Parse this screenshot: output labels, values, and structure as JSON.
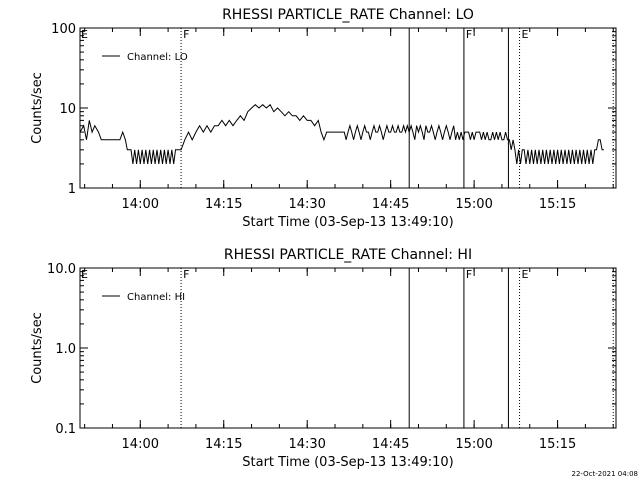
{
  "footer": {
    "date_stamp": "22-Oct-2021 04:08"
  },
  "chart_data": [
    {
      "type": "line",
      "title": "RHESSI PARTICLE_RATE Channel: LO",
      "xlabel": "Start Time (03-Sep-13 13:49:10)",
      "ylabel": "Counts/sec",
      "yscale": "log",
      "ylim": [
        1,
        100
      ],
      "xlim": [
        "13:49:10",
        "15:25:30"
      ],
      "x_ticks": [
        "14:00",
        "14:15",
        "14:30",
        "14:45",
        "15:00",
        "15:15"
      ],
      "y_ticks": [
        "1",
        "10",
        "100"
      ],
      "legend": {
        "location": "top-left",
        "entries": [
          "Channel: LO"
        ]
      },
      "vertical_markers": [
        {
          "time": "14:07:20",
          "style": "dotted",
          "label": "F"
        },
        {
          "time": "14:48:20",
          "style": "solid",
          "label": ""
        },
        {
          "time": "14:58:10",
          "style": "solid",
          "label": "F"
        },
        {
          "time": "15:06:10",
          "style": "solid",
          "label": ""
        },
        {
          "time": "15:08:10",
          "style": "dotted",
          "label": "E"
        },
        {
          "time": "15:25:00",
          "style": "dotted",
          "label": ""
        }
      ],
      "edge_labels": [
        {
          "label": "E",
          "position": "left-edge"
        }
      ],
      "series": [
        {
          "name": "Channel: LO",
          "points": [
            [
              "13:49:10",
              5
            ],
            [
              "13:49:50",
              6
            ],
            [
              "13:50:20",
              4
            ],
            [
              "13:50:50",
              7
            ],
            [
              "13:51:20",
              5
            ],
            [
              "13:51:50",
              6
            ],
            [
              "13:52:30",
              5
            ],
            [
              "13:53:00",
              4
            ],
            [
              "13:53:40",
              4
            ],
            [
              "13:54:20",
              4
            ],
            [
              "13:55:00",
              4
            ],
            [
              "13:55:40",
              4
            ],
            [
              "13:56:20",
              4
            ],
            [
              "13:56:50",
              5
            ],
            [
              "13:57:20",
              4
            ],
            [
              "13:57:40",
              3
            ],
            [
              "13:58:20",
              3
            ],
            [
              "13:58:40",
              2
            ],
            [
              "13:59:00",
              3
            ],
            [
              "13:59:20",
              2
            ],
            [
              "13:59:40",
              3
            ],
            [
              "14:00:00",
              2
            ],
            [
              "14:00:20",
              3
            ],
            [
              "14:00:40",
              2
            ],
            [
              "14:01:00",
              3
            ],
            [
              "14:01:20",
              2
            ],
            [
              "14:01:40",
              3
            ],
            [
              "14:02:00",
              2
            ],
            [
              "14:02:20",
              3
            ],
            [
              "14:02:40",
              2
            ],
            [
              "14:03:00",
              3
            ],
            [
              "14:03:20",
              2
            ],
            [
              "14:03:40",
              3
            ],
            [
              "14:04:00",
              2
            ],
            [
              "14:04:20",
              3
            ],
            [
              "14:04:40",
              2
            ],
            [
              "14:05:00",
              3
            ],
            [
              "14:05:20",
              2
            ],
            [
              "14:05:40",
              3
            ],
            [
              "14:06:00",
              2
            ],
            [
              "14:06:20",
              3
            ],
            [
              "14:06:40",
              3
            ],
            [
              "14:07:00",
              3
            ],
            [
              "14:07:20",
              3
            ],
            [
              "14:08:00",
              4
            ],
            [
              "14:08:40",
              5
            ],
            [
              "14:09:20",
              4
            ],
            [
              "14:10:00",
              5
            ],
            [
              "14:10:40",
              6
            ],
            [
              "14:11:20",
              5
            ],
            [
              "14:12:00",
              6
            ],
            [
              "14:12:40",
              5
            ],
            [
              "14:13:20",
              6
            ],
            [
              "14:14:00",
              6
            ],
            [
              "14:14:40",
              7
            ],
            [
              "14:15:20",
              6
            ],
            [
              "14:16:00",
              7
            ],
            [
              "14:16:40",
              6
            ],
            [
              "14:17:20",
              7
            ],
            [
              "14:18:00",
              8
            ],
            [
              "14:18:40",
              7
            ],
            [
              "14:19:20",
              9
            ],
            [
              "14:20:00",
              10
            ],
            [
              "14:20:40",
              11
            ],
            [
              "14:21:20",
              10
            ],
            [
              "14:22:00",
              11
            ],
            [
              "14:22:40",
              10
            ],
            [
              "14:23:20",
              11
            ],
            [
              "14:24:00",
              9
            ],
            [
              "14:24:40",
              10
            ],
            [
              "14:25:20",
              9
            ],
            [
              "14:26:00",
              8
            ],
            [
              "14:26:40",
              9
            ],
            [
              "14:27:20",
              8
            ],
            [
              "14:28:00",
              8
            ],
            [
              "14:28:40",
              7
            ],
            [
              "14:29:20",
              8
            ],
            [
              "14:30:00",
              7
            ],
            [
              "14:30:40",
              7
            ],
            [
              "14:31:20",
              6
            ],
            [
              "14:32:00",
              7
            ],
            [
              "14:32:30",
              5
            ],
            [
              "14:33:00",
              4
            ],
            [
              "14:33:30",
              5
            ],
            [
              "14:34:00",
              5
            ],
            [
              "14:34:40",
              5
            ],
            [
              "14:35:20",
              5
            ],
            [
              "14:36:00",
              5
            ],
            [
              "14:36:40",
              5
            ],
            [
              "14:37:00",
              4
            ],
            [
              "14:37:20",
              5
            ],
            [
              "14:37:40",
              6
            ],
            [
              "14:38:00",
              5
            ],
            [
              "14:38:20",
              4
            ],
            [
              "14:38:40",
              5
            ],
            [
              "14:39:00",
              6
            ],
            [
              "14:39:20",
              5
            ],
            [
              "14:39:40",
              4
            ],
            [
              "14:40:00",
              5
            ],
            [
              "14:40:20",
              6
            ],
            [
              "14:40:40",
              5
            ],
            [
              "14:41:00",
              5
            ],
            [
              "14:41:20",
              4
            ],
            [
              "14:41:40",
              5
            ],
            [
              "14:42:00",
              6
            ],
            [
              "14:42:20",
              5
            ],
            [
              "14:42:40",
              5
            ],
            [
              "14:43:00",
              6
            ],
            [
              "14:43:20",
              5
            ],
            [
              "14:43:40",
              4
            ],
            [
              "14:44:00",
              5
            ],
            [
              "14:44:20",
              6
            ],
            [
              "14:44:40",
              5
            ],
            [
              "14:45:00",
              5
            ],
            [
              "14:45:20",
              6
            ],
            [
              "14:45:40",
              5
            ],
            [
              "14:46:00",
              5
            ],
            [
              "14:46:20",
              6
            ],
            [
              "14:46:40",
              5
            ],
            [
              "14:47:00",
              5
            ],
            [
              "14:47:20",
              6
            ],
            [
              "14:47:40",
              5
            ],
            [
              "14:48:00",
              6
            ],
            [
              "14:48:20",
              5
            ],
            [
              "14:48:40",
              6
            ],
            [
              "14:49:00",
              5
            ],
            [
              "14:49:20",
              4
            ],
            [
              "14:49:40",
              6
            ],
            [
              "14:50:00",
              5
            ],
            [
              "14:50:20",
              6
            ],
            [
              "14:50:40",
              5
            ],
            [
              "14:51:00",
              4
            ],
            [
              "14:51:20",
              6
            ],
            [
              "14:51:40",
              5
            ],
            [
              "14:52:00",
              5
            ],
            [
              "14:52:20",
              6
            ],
            [
              "14:52:40",
              5
            ],
            [
              "14:53:00",
              4
            ],
            [
              "14:53:20",
              5
            ],
            [
              "14:53:40",
              6
            ],
            [
              "14:54:00",
              5
            ],
            [
              "14:54:20",
              4
            ],
            [
              "14:54:40",
              5
            ],
            [
              "14:55:00",
              6
            ],
            [
              "14:55:20",
              5
            ],
            [
              "14:55:40",
              4
            ],
            [
              "14:56:00",
              5
            ],
            [
              "14:56:20",
              6
            ],
            [
              "14:56:40",
              4
            ],
            [
              "14:57:00",
              5
            ],
            [
              "14:57:20",
              4
            ],
            [
              "14:57:40",
              5
            ],
            [
              "14:58:00",
              4
            ],
            [
              "14:58:20",
              5
            ],
            [
              "14:58:40",
              5
            ],
            [
              "14:59:00",
              5
            ],
            [
              "14:59:20",
              4
            ],
            [
              "14:59:40",
              5
            ],
            [
              "15:00:00",
              4
            ],
            [
              "15:00:20",
              5
            ],
            [
              "15:00:40",
              5
            ],
            [
              "15:01:00",
              5
            ],
            [
              "15:01:20",
              4
            ],
            [
              "15:01:40",
              5
            ],
            [
              "15:02:00",
              4
            ],
            [
              "15:02:20",
              5
            ],
            [
              "15:02:40",
              4
            ],
            [
              "15:03:00",
              4
            ],
            [
              "15:03:20",
              5
            ],
            [
              "15:03:40",
              4
            ],
            [
              "15:04:00",
              5
            ],
            [
              "15:04:20",
              4
            ],
            [
              "15:04:40",
              5
            ],
            [
              "15:05:00",
              4
            ],
            [
              "15:05:20",
              4
            ],
            [
              "15:05:40",
              5
            ],
            [
              "15:06:00",
              4
            ],
            [
              "15:06:20",
              4
            ],
            [
              "15:06:40",
              3
            ],
            [
              "15:07:00",
              4
            ],
            [
              "15:07:20",
              3
            ],
            [
              "15:07:40",
              2
            ],
            [
              "15:08:00",
              3
            ],
            [
              "15:08:20",
              2
            ],
            [
              "15:08:40",
              3
            ],
            [
              "15:09:00",
              3
            ],
            [
              "15:09:20",
              2
            ],
            [
              "15:09:40",
              3
            ],
            [
              "15:10:00",
              2
            ],
            [
              "15:10:20",
              3
            ],
            [
              "15:10:40",
              2
            ],
            [
              "15:11:00",
              3
            ],
            [
              "15:11:20",
              2
            ],
            [
              "15:11:40",
              3
            ],
            [
              "15:12:00",
              2
            ],
            [
              "15:12:20",
              3
            ],
            [
              "15:12:40",
              2
            ],
            [
              "15:13:00",
              3
            ],
            [
              "15:13:20",
              2
            ],
            [
              "15:13:40",
              3
            ],
            [
              "15:14:00",
              2
            ],
            [
              "15:14:20",
              3
            ],
            [
              "15:14:40",
              2
            ],
            [
              "15:15:00",
              3
            ],
            [
              "15:15:20",
              2
            ],
            [
              "15:15:40",
              3
            ],
            [
              "15:16:00",
              2
            ],
            [
              "15:16:20",
              3
            ],
            [
              "15:16:40",
              2
            ],
            [
              "15:17:00",
              3
            ],
            [
              "15:17:20",
              2
            ],
            [
              "15:17:40",
              3
            ],
            [
              "15:18:00",
              2
            ],
            [
              "15:18:20",
              3
            ],
            [
              "15:18:40",
              2
            ],
            [
              "15:19:00",
              3
            ],
            [
              "15:19:20",
              2
            ],
            [
              "15:19:40",
              3
            ],
            [
              "15:20:00",
              2
            ],
            [
              "15:20:20",
              3
            ],
            [
              "15:20:40",
              2
            ],
            [
              "15:21:00",
              3
            ],
            [
              "15:21:20",
              2
            ],
            [
              "15:21:40",
              3
            ],
            [
              "15:22:00",
              3
            ],
            [
              "15:22:20",
              4
            ],
            [
              "15:22:40",
              4
            ],
            [
              "15:23:00",
              3
            ],
            [
              "15:23:20",
              3
            ]
          ]
        }
      ]
    },
    {
      "type": "line",
      "title": "RHESSI PARTICLE_RATE Channel: HI",
      "xlabel": "Start Time (03-Sep-13 13:49:10)",
      "ylabel": "Counts/sec",
      "yscale": "log",
      "ylim": [
        0.1,
        10
      ],
      "xlim": [
        "13:49:10",
        "15:25:30"
      ],
      "x_ticks": [
        "14:00",
        "14:15",
        "14:30",
        "14:45",
        "15:00",
        "15:15"
      ],
      "y_ticks": [
        "0.1",
        "1.0",
        "10.0"
      ],
      "legend": {
        "location": "top-left",
        "entries": [
          "Channel: HI"
        ]
      },
      "vertical_markers": [
        {
          "time": "14:07:20",
          "style": "dotted",
          "label": "F"
        },
        {
          "time": "14:48:20",
          "style": "solid",
          "label": ""
        },
        {
          "time": "14:58:10",
          "style": "solid",
          "label": "F"
        },
        {
          "time": "15:06:10",
          "style": "solid",
          "label": ""
        },
        {
          "time": "15:08:10",
          "style": "dotted",
          "label": "E"
        },
        {
          "time": "15:25:00",
          "style": "dotted",
          "label": ""
        }
      ],
      "edge_labels": [
        {
          "label": "E",
          "position": "left-edge"
        }
      ],
      "series": [
        {
          "name": "Channel: HI",
          "points": []
        }
      ]
    }
  ]
}
